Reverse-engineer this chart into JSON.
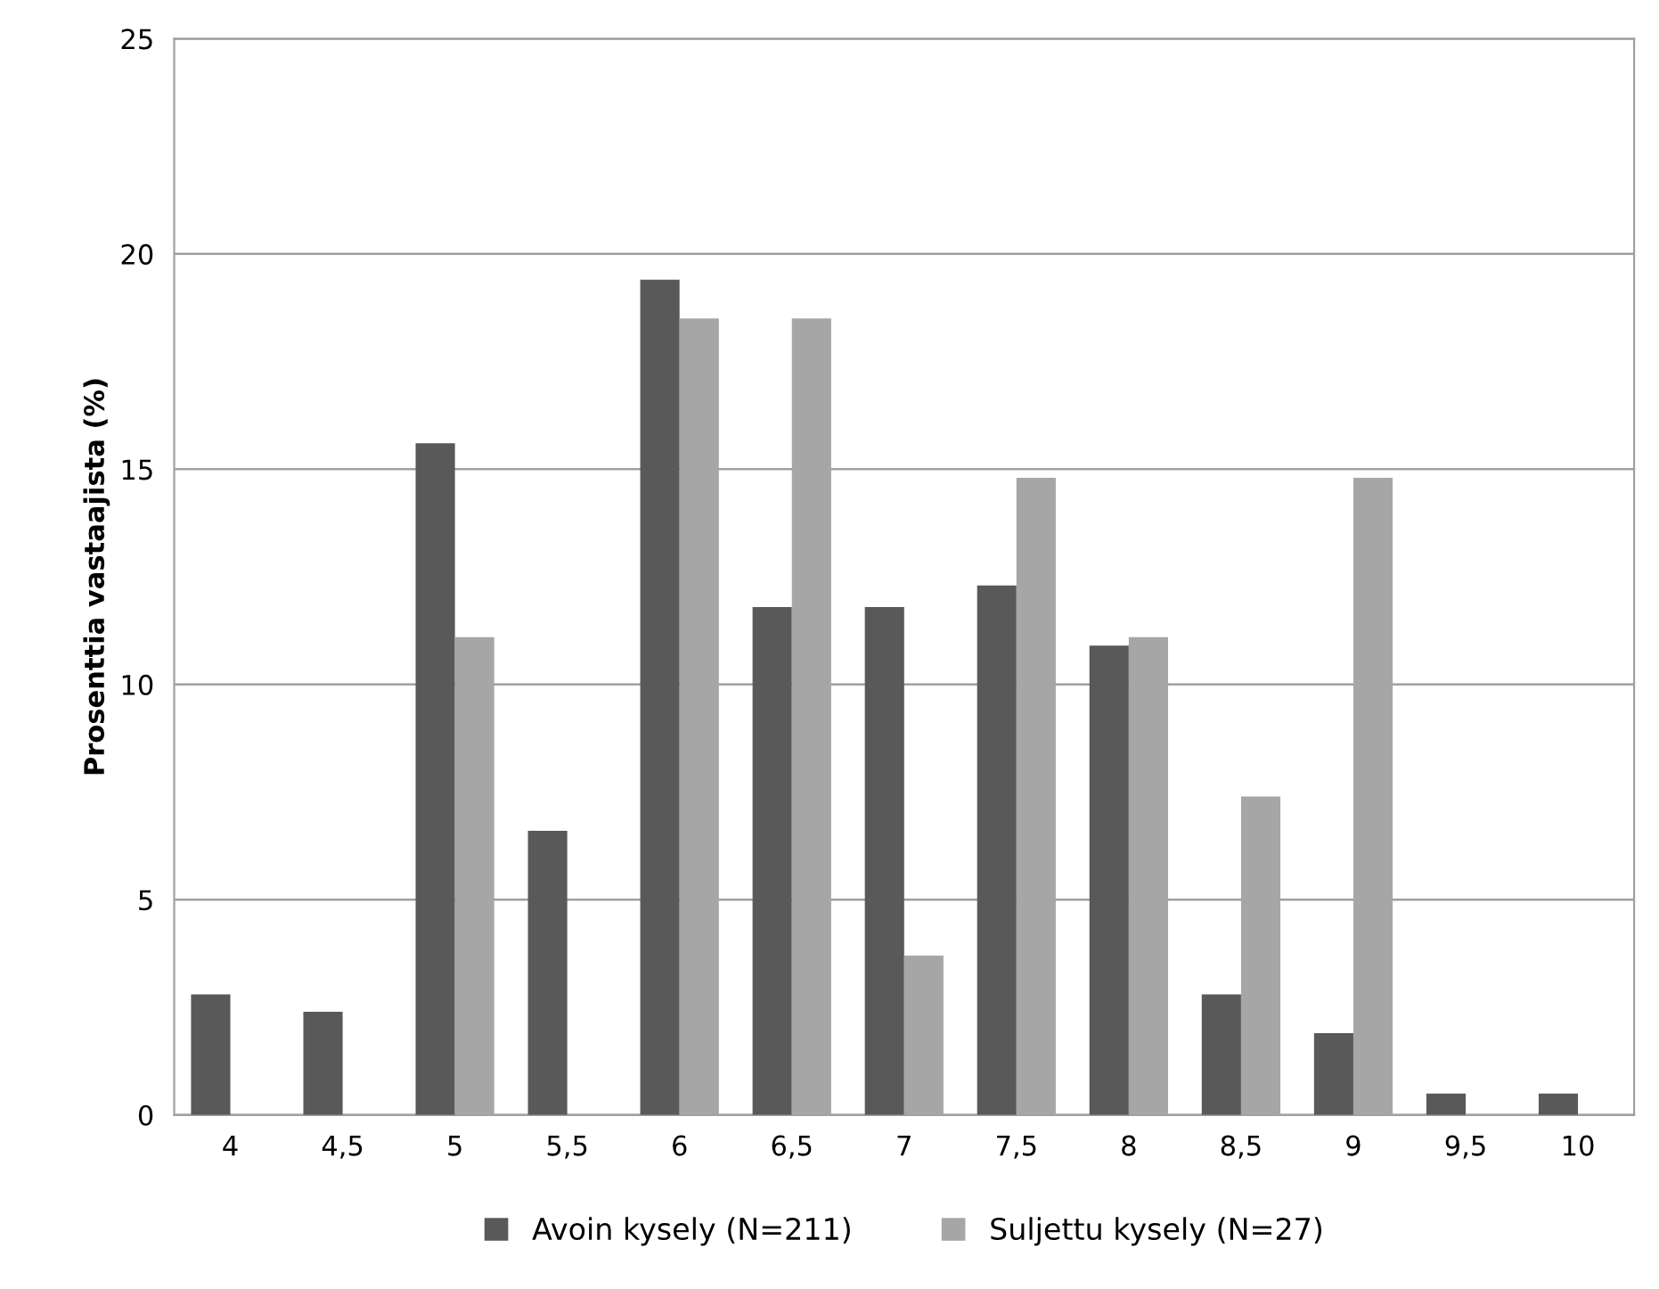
{
  "chart_data": {
    "type": "bar",
    "ylabel": "Prosenttia vastaajista (%)",
    "categories": [
      "4",
      "4,5",
      "5",
      "5,5",
      "6",
      "6,5",
      "7",
      "7,5",
      "8",
      "8,5",
      "9",
      "9,5",
      "10"
    ],
    "series": [
      {
        "name": "Avoin kysely (N=211)",
        "color": "#595959",
        "values": [
          2.8,
          2.4,
          15.6,
          6.6,
          19.4,
          11.8,
          11.8,
          12.3,
          10.9,
          2.8,
          1.9,
          0.5,
          0.5
        ]
      },
      {
        "name": "Suljettu kysely (N=27)",
        "color": "#a6a6a6",
        "values": [
          0,
          0,
          11.1,
          0,
          18.5,
          18.5,
          3.7,
          14.8,
          11.1,
          7.4,
          14.8,
          0,
          0
        ]
      }
    ],
    "ylim": [
      0,
      25
    ],
    "yticks": [
      0,
      5,
      10,
      15,
      20,
      25
    ],
    "grid": "y",
    "legend": "bottom"
  }
}
